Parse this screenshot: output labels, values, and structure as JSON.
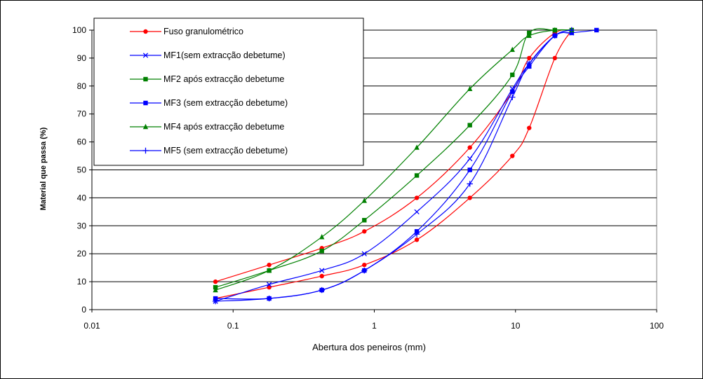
{
  "chart_data": {
    "type": "line",
    "xlabel": "Abertura dos peneiros (mm)",
    "ylabel": "Material que passa (%)",
    "xscale": "log",
    "xlim": [
      0.01,
      100
    ],
    "ylim": [
      0,
      100
    ],
    "x_ticks": [
      0.01,
      0.1,
      1,
      10,
      100
    ],
    "x_tick_labels": [
      "0.01",
      "0.1",
      "1",
      "10",
      "100"
    ],
    "y_ticks": [
      0,
      10,
      20,
      30,
      40,
      50,
      60,
      70,
      80,
      90,
      100
    ],
    "y_tick_labels": [
      "0",
      "10",
      "20",
      "30",
      "40",
      "50",
      "60",
      "70",
      "80",
      "90",
      "100"
    ],
    "grid": "horizontal",
    "legend_position": "top-left",
    "series": [
      {
        "name": "Fuso granulométrico",
        "color": "#ff0000",
        "marker": "circle",
        "x": [
          0.075,
          0.18,
          0.425,
          0.85,
          2,
          4.75,
          9.5,
          12.5,
          19,
          25
        ],
        "y": [
          10,
          16,
          22,
          28,
          40,
          58,
          78,
          90,
          99,
          100
        ]
      },
      {
        "name": "Fuso granulométrico",
        "color": "#ff0000",
        "marker": "circle",
        "x": [
          0.075,
          0.18,
          0.425,
          0.85,
          2,
          4.75,
          9.5,
          12.5,
          19,
          25
        ],
        "y": [
          4,
          8,
          12,
          16,
          25,
          40,
          55,
          65,
          90,
          100
        ]
      },
      {
        "name": "MF1(sem extracção debetume)",
        "color": "#0000ff",
        "marker": "x",
        "x": [
          0.075,
          0.18,
          0.425,
          0.85,
          2,
          4.75,
          9.5,
          12.5,
          19,
          25
        ],
        "y": [
          3,
          9,
          14,
          20,
          35,
          54,
          79,
          88,
          98,
          99
        ]
      },
      {
        "name": "MF2 após extracção debetume",
        "color": "#008000",
        "marker": "square",
        "x": [
          0.075,
          0.18,
          0.425,
          0.85,
          2,
          4.75,
          9.5,
          12.5,
          19,
          25
        ],
        "y": [
          8,
          14,
          21,
          32,
          48,
          66,
          84,
          99,
          100,
          100
        ]
      },
      {
        "name": "MF3 (sem extracção debetume)",
        "color": "#0000ff",
        "marker": "square",
        "x": [
          0.075,
          0.18,
          0.425,
          0.85,
          2,
          4.75,
          9.5,
          12.5,
          19,
          25,
          37.5
        ],
        "y": [
          4,
          4,
          7,
          14,
          28,
          50,
          78,
          87,
          98,
          99,
          100
        ]
      },
      {
        "name": "MF4 após extracção debetume",
        "color": "#008000",
        "marker": "triangle",
        "x": [
          0.075,
          0.18,
          0.425,
          0.85,
          2,
          4.75,
          9.5,
          12.5,
          19,
          25
        ],
        "y": [
          7,
          14,
          26,
          39,
          58,
          79,
          93,
          98,
          100,
          100
        ]
      },
      {
        "name": "MF5 (sem extracção debetume)",
        "color": "#0000ff",
        "marker": "plus",
        "x": [
          0.075,
          0.18,
          0.425,
          0.85,
          2,
          4.75,
          9.5,
          12.5,
          19,
          25
        ],
        "y": [
          3,
          4,
          7,
          14,
          27,
          45,
          76,
          88,
          98,
          100
        ]
      }
    ],
    "legend": [
      {
        "label": "Fuso granulométrico",
        "color": "#ff0000",
        "marker": "circle"
      },
      {
        "label": "MF1(sem extracção debetume)",
        "color": "#0000ff",
        "marker": "x"
      },
      {
        "label": "MF2 após extracção debetume",
        "color": "#008000",
        "marker": "square"
      },
      {
        "label": "MF3 (sem extracção debetume)",
        "color": "#0000ff",
        "marker": "square"
      },
      {
        "label": "MF4 após extracção debetume",
        "color": "#008000",
        "marker": "triangle"
      },
      {
        "label": "MF5 (sem extracção debetume)",
        "color": "#0000ff",
        "marker": "plus"
      }
    ]
  }
}
